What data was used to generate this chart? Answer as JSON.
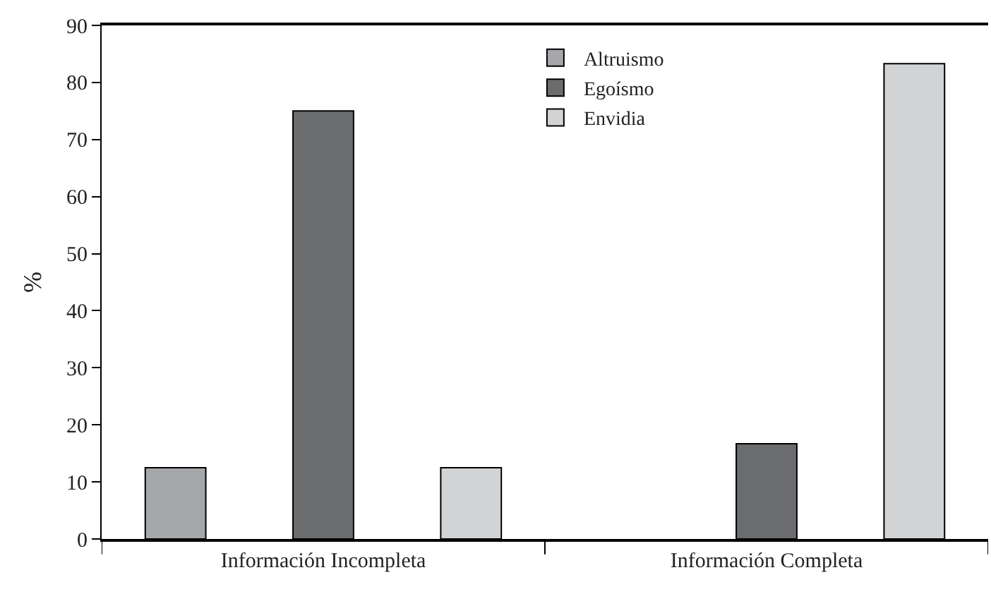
{
  "chart_data": {
    "type": "bar",
    "categories": [
      "Información Incompleta",
      "Información Completa"
    ],
    "ylabel": "%",
    "series": [
      {
        "name": "Altruismo",
        "color": "#a6a7ab",
        "values": [
          12.5,
          0
        ]
      },
      {
        "name": "Egoísmo",
        "color": "#6b6c6e",
        "values": [
          75,
          16.7
        ]
      },
      {
        "name": "Envidia",
        "color": "#d2d3d5",
        "values": [
          12.5,
          83.3
        ]
      }
    ],
    "ylim": [
      0,
      90
    ],
    "yticks": [
      0,
      10,
      20,
      30,
      40,
      50,
      60,
      70,
      80,
      90
    ],
    "legend": "top right"
  }
}
